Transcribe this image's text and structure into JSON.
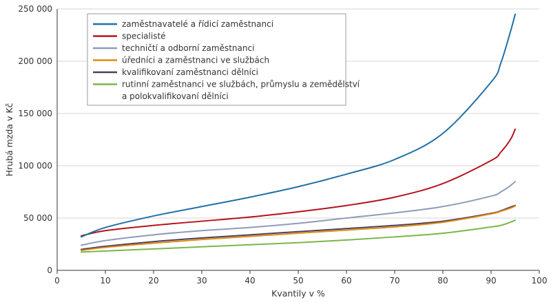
{
  "chart_data": {
    "type": "line",
    "xlabel": "Kvantily v %",
    "ylabel": "Hrubá mzda v Kč",
    "xlim": [
      0,
      100
    ],
    "ylim": [
      0,
      250000
    ],
    "x_ticks": [
      0,
      10,
      20,
      30,
      40,
      50,
      60,
      70,
      80,
      90,
      100
    ],
    "x_tick_labels": [
      "0",
      "10",
      "20",
      "30",
      "40",
      "50",
      "60",
      "70",
      "80",
      "90",
      "100"
    ],
    "y_ticks": [
      0,
      50000,
      100000,
      150000,
      200000,
      250000
    ],
    "y_tick_labels": [
      "0",
      "50 000",
      "100 000",
      "150 000",
      "200 000",
      "250 000"
    ],
    "grid": "horizontal",
    "legend_position": "top-left",
    "x": [
      5,
      10,
      20,
      30,
      40,
      50,
      60,
      70,
      80,
      90,
      92,
      94,
      95
    ],
    "series": [
      {
        "name": "zaměstnavatelé a řídicí zaměstnanci",
        "color": "#1f6fa6",
        "values": [
          32000,
          41000,
          52000,
          61000,
          70000,
          80000,
          92000,
          106000,
          131000,
          180000,
          198000,
          228000,
          245000
        ]
      },
      {
        "name": "specialisté",
        "color": "#b5121b",
        "values": [
          33000,
          38000,
          43000,
          47000,
          51000,
          56000,
          62000,
          70000,
          83000,
          105000,
          113000,
          125000,
          135000
        ]
      },
      {
        "name": "techničtí a odborní zaměstnanci",
        "color": "#8e9bb8",
        "values": [
          24000,
          28500,
          34000,
          38000,
          41000,
          45000,
          50000,
          55000,
          61000,
          71000,
          75000,
          81000,
          85000
        ]
      },
      {
        "name": "úředníci a zaměstnanci ve službách",
        "color": "#e08a10",
        "values": [
          19000,
          22000,
          26000,
          29500,
          32500,
          35500,
          38500,
          41500,
          46000,
          54000,
          56500,
          59500,
          61500
        ]
      },
      {
        "name": "kvalifikovaní zaměstnanci dělníci",
        "color": "#4b3f5e",
        "values": [
          20000,
          23000,
          27500,
          31000,
          34000,
          37000,
          40000,
          43000,
          47000,
          54500,
          57000,
          60500,
          62000
        ]
      },
      {
        "name": "rutinní zaměstnanci ve službách, průmyslu a zemědělství a polokvalifikovaní dělníci",
        "color": "#7ab648",
        "values": [
          17500,
          18500,
          20500,
          22500,
          24500,
          26500,
          29000,
          32000,
          35500,
          41500,
          43000,
          46000,
          48000
        ]
      }
    ],
    "legend_lines": [
      [
        "zaměstnavatelé a řídicí zaměstnanci"
      ],
      [
        "specialisté"
      ],
      [
        "techničtí a odborní zaměstnanci"
      ],
      [
        "úředníci a zaměstnanci ve službách"
      ],
      [
        "kvalifikovaní zaměstnanci dělníci"
      ],
      [
        "rutinní zaměstnanci ve službách, průmyslu a zemědělství",
        "a polokvalifikovaní dělníci"
      ]
    ]
  }
}
